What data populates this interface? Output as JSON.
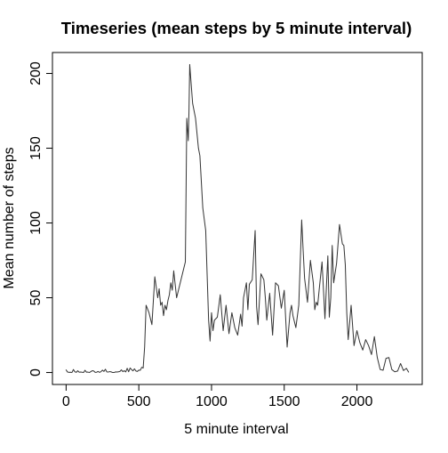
{
  "chart_data": {
    "type": "line",
    "title": "Timeseries (mean steps by 5 minute interval)",
    "xlabel": "5 minute interval",
    "ylabel": "Mean number of steps",
    "xlim": [
      -94,
      2449
    ],
    "ylim": [
      -8,
      214
    ],
    "xticks": [
      0,
      500,
      1000,
      1500,
      2000
    ],
    "yticks": [
      0,
      50,
      100,
      150,
      200
    ],
    "grid": false,
    "legend": "none",
    "line_color": "#333333",
    "series": [
      {
        "x": [
          0,
          10,
          20,
          30,
          40,
          50,
          60,
          70,
          80,
          90,
          100,
          110,
          120,
          130,
          140,
          150,
          160,
          170,
          180,
          190,
          200,
          210,
          220,
          230,
          240,
          250,
          260,
          270,
          280,
          290,
          300,
          310,
          320,
          330,
          340,
          350,
          360,
          370,
          380,
          390,
          400,
          410,
          420,
          430,
          440,
          450,
          460,
          470,
          480,
          490,
          500,
          510,
          520,
          530,
          540,
          550,
          570,
          590,
          610,
          630,
          640,
          650,
          660,
          670,
          680,
          690,
          700,
          710,
          720,
          730,
          740,
          760,
          780,
          800,
          810,
          820,
          830,
          840,
          845,
          850,
          870,
          890,
          900,
          910,
          920,
          940,
          960,
          980,
          990,
          1000,
          1010,
          1020,
          1040,
          1060,
          1080,
          1100,
          1120,
          1140,
          1160,
          1180,
          1200,
          1210,
          1220,
          1240,
          1250,
          1260,
          1280,
          1300,
          1310,
          1320,
          1340,
          1360,
          1370,
          1380,
          1400,
          1420,
          1440,
          1460,
          1480,
          1500,
          1520,
          1540,
          1550,
          1560,
          1580,
          1600,
          1620,
          1630,
          1640,
          1660,
          1680,
          1700,
          1710,
          1720,
          1730,
          1740,
          1760,
          1780,
          1800,
          1810,
          1820,
          1830,
          1840,
          1860,
          1880,
          1900,
          1910,
          1920,
          1930,
          1940,
          1960,
          1980,
          2000,
          2020,
          2040,
          2060,
          2080,
          2100,
          2120,
          2140,
          2160,
          2180,
          2200,
          2220,
          2240,
          2260,
          2280,
          2300,
          2320,
          2340,
          2355
        ],
        "values": [
          1.7,
          0.3,
          0.1,
          0.2,
          0.0,
          2.0,
          0.5,
          0.1,
          1.2,
          0.2,
          0.3,
          0.2,
          0.0,
          1.5,
          0.2,
          0.3,
          0.0,
          0.6,
          1.2,
          1.0,
          0.1,
          0.2,
          0.7,
          0.1,
          0.6,
          1.6,
          0.7,
          2.2,
          0.4,
          0.3,
          0.6,
          0.4,
          0.0,
          0.0,
          0.4,
          0.3,
          0.5,
          0.7,
          1.8,
          0.6,
          1.2,
          0.4,
          2.8,
          0.5,
          3.0,
          2.0,
          1.1,
          2.5,
          1.0,
          0.7,
          1.6,
          1.5,
          3.5,
          3.0,
          17.0,
          45.0,
          40.0,
          32.0,
          64.0,
          50.0,
          56.0,
          45.0,
          47.0,
          38.0,
          45.0,
          42.0,
          48.0,
          52.0,
          60.0,
          55.0,
          68.0,
          50.0,
          58.0,
          66.0,
          70.0,
          74.0,
          170.0,
          155.0,
          175.0,
          206.0,
          180.0,
          170.0,
          160.0,
          150.0,
          145.0,
          110.0,
          95.0,
          35.0,
          21.0,
          40.0,
          28.0,
          35.0,
          37.0,
          52.0,
          28.0,
          45.0,
          26.0,
          40.0,
          30.0,
          25.0,
          39.0,
          31.0,
          50.0,
          60.0,
          42.0,
          59.0,
          62.0,
          95.0,
          44.0,
          32.0,
          66.0,
          62.0,
          50.0,
          35.0,
          53.0,
          25.0,
          60.0,
          58.0,
          43.0,
          55.0,
          17.0,
          40.0,
          45.0,
          38.0,
          30.0,
          45.0,
          102.0,
          82.0,
          63.0,
          47.0,
          75.0,
          60.0,
          42.0,
          47.0,
          45.0,
          55.0,
          74.0,
          36.0,
          78.0,
          37.0,
          50.0,
          85.0,
          60.0,
          73.0,
          99.0,
          86.0,
          85.0,
          72.0,
          40.0,
          22.0,
          45.0,
          18.0,
          28.0,
          20.0,
          15.0,
          22.0,
          18.0,
          12.0,
          24.0,
          10.0,
          2.0,
          1.5,
          9.5,
          10.0,
          2.0,
          0.5,
          1.0,
          6.0,
          1.3,
          2.8,
          0.3
        ]
      }
    ]
  }
}
